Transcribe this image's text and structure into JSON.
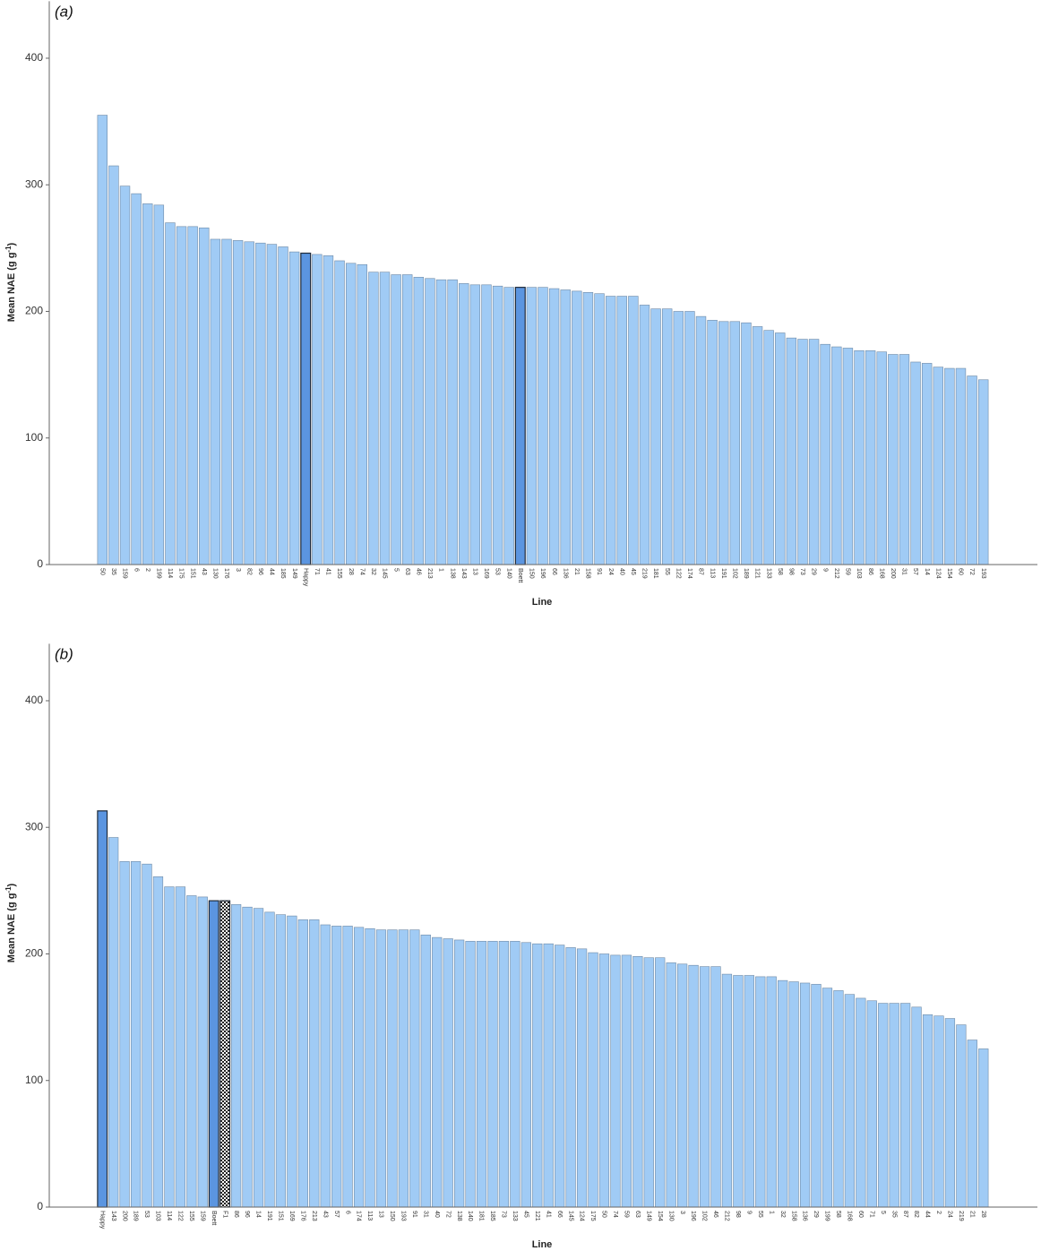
{
  "chart_data": [
    {
      "type": "bar",
      "panel_label": "(a)",
      "ylabel": {
        "text": "Mean NAE (g g",
        "superscript": "-1",
        "end": ")"
      },
      "xlabel": "Line",
      "categories": [
        "50",
        "35",
        "159",
        "6",
        "2",
        "199",
        "114",
        "175",
        "151",
        "43",
        "130",
        "176",
        "3",
        "82",
        "96",
        "44",
        "185",
        "149",
        "Happy",
        "71",
        "41",
        "155",
        "28",
        "74",
        "32",
        "145",
        "5",
        "63",
        "46",
        "213",
        "1",
        "138",
        "143",
        "13",
        "169",
        "53",
        "140",
        "Boett",
        "150",
        "196",
        "66",
        "136",
        "21",
        "158",
        "91",
        "24",
        "40",
        "45",
        "219",
        "181",
        "55",
        "122",
        "174",
        "87",
        "113",
        "191",
        "102",
        "189",
        "121",
        "133",
        "58",
        "98",
        "73",
        "29",
        "9",
        "212",
        "59",
        "103",
        "86",
        "168",
        "200",
        "31",
        "57",
        "14",
        "124",
        "154",
        "60",
        "72",
        "193"
      ],
      "values": [
        355,
        315,
        299,
        293,
        285,
        284,
        270,
        267,
        267,
        266,
        257,
        257,
        256,
        255,
        254,
        253,
        251,
        247,
        246,
        245,
        244,
        240,
        238,
        237,
        231,
        231,
        229,
        229,
        227,
        226,
        225,
        225,
        222,
        221,
        221,
        220,
        219,
        219,
        219,
        219,
        218,
        217,
        216,
        215,
        214,
        212,
        212,
        212,
        205,
        202,
        202,
        200,
        200,
        196,
        193,
        192,
        192,
        191,
        188,
        185,
        183,
        179,
        178,
        178,
        174,
        172,
        171,
        169,
        169,
        168,
        166,
        166,
        160,
        159,
        156,
        155,
        155,
        149,
        146
      ],
      "color": "#a0cbf5",
      "highlight": {
        "color": "#5b95e0",
        "categories": [
          "Happy",
          "Boett"
        ]
      },
      "ylim": [
        0,
        445
      ],
      "yticks": [
        0,
        100,
        200,
        300,
        400
      ],
      "grid": false
    },
    {
      "type": "bar",
      "panel_label": "(b)",
      "ylabel": {
        "text": "Mean NAE (g g",
        "superscript": "-1",
        "end": ")"
      },
      "xlabel": "Line",
      "categories": [
        "Happy",
        "143",
        "200",
        "189",
        "53",
        "103",
        "114",
        "122",
        "155",
        "159",
        "Boett",
        "F1",
        "86",
        "96",
        "14",
        "191",
        "151",
        "169",
        "176",
        "213",
        "43",
        "57",
        "6",
        "174",
        "113",
        "13",
        "150",
        "193",
        "91",
        "31",
        "40",
        "72",
        "138",
        "140",
        "181",
        "185",
        "73",
        "133",
        "45",
        "121",
        "41",
        "66",
        "145",
        "124",
        "175",
        "50",
        "74",
        "59",
        "63",
        "149",
        "154",
        "130",
        "3",
        "196",
        "102",
        "46",
        "212",
        "98",
        "9",
        "55",
        "1",
        "32",
        "158",
        "136",
        "29",
        "199",
        "58",
        "168",
        "60",
        "71",
        "5",
        "35",
        "87",
        "82",
        "44",
        "2",
        "24",
        "219",
        "21",
        "28"
      ],
      "values": [
        313,
        292,
        273,
        273,
        271,
        261,
        253,
        253,
        246,
        245,
        242,
        242,
        239,
        237,
        236,
        233,
        231,
        230,
        227,
        227,
        223,
        222,
        222,
        221,
        220,
        219,
        219,
        219,
        219,
        215,
        213,
        212,
        211,
        210,
        210,
        210,
        210,
        210,
        209,
        208,
        208,
        207,
        205,
        204,
        201,
        200,
        199,
        199,
        198,
        197,
        197,
        193,
        192,
        191,
        190,
        190,
        184,
        183,
        183,
        182,
        182,
        179,
        178,
        177,
        176,
        173,
        171,
        168,
        165,
        163,
        161,
        161,
        161,
        158,
        152,
        151,
        149,
        144,
        132,
        125
      ],
      "color": "#a0cbf5",
      "highlight": {
        "color": "#5b95e0",
        "categories": [
          "Happy",
          "Boett"
        ]
      },
      "pattern": {
        "type": "checkered",
        "categories": [
          "F1"
        ]
      },
      "ylim": [
        0,
        445
      ],
      "yticks": [
        0,
        100,
        200,
        300,
        400
      ],
      "grid": false
    }
  ]
}
